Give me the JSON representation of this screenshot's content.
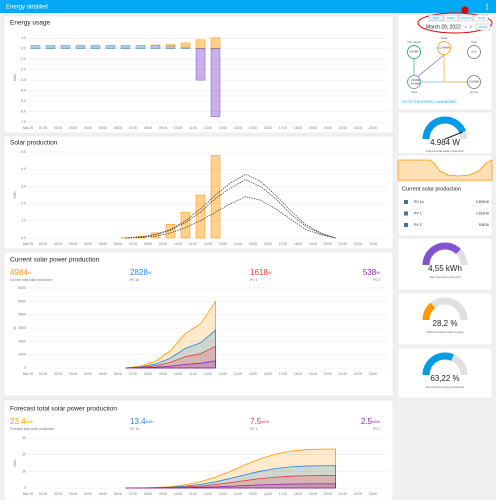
{
  "app_bar": {
    "title": "Energy detailed"
  },
  "energy_usage": {
    "title": "Energy usage",
    "y_label": "kWh",
    "x_labels": [
      "Mar 29",
      "01:00",
      "02:00",
      "03:00",
      "04:00",
      "05:00",
      "06:00",
      "07:00",
      "08:00",
      "09:00",
      "10:00",
      "11:00",
      "12:00",
      "13:00",
      "14:00",
      "15:00",
      "16:00",
      "17:00",
      "18:00",
      "19:00",
      "20:00",
      "21:00",
      "22:00",
      "23:00"
    ],
    "ylim": [
      -7,
      1.5
    ],
    "yticks": [
      {
        "value": 1,
        "label": "1.0"
      },
      {
        "value": 0,
        "label": "0.0"
      },
      {
        "value": -1,
        "label": "-1.0"
      },
      {
        "value": -2,
        "label": "-2.0"
      },
      {
        "value": -3,
        "label": "-3.0"
      },
      {
        "value": -4,
        "label": "-4.0"
      },
      {
        "value": -5,
        "label": "-5.0"
      },
      {
        "value": -6,
        "label": "-6.0"
      },
      {
        "value": -7,
        "label": "-7.0"
      }
    ],
    "series": [
      {
        "kind": "bar",
        "color": "#488fc2",
        "values": [
          0.3,
          0.3,
          0.3,
          0.3,
          0.3,
          0.3,
          0.3,
          0.3,
          0.3,
          0.25,
          0.15,
          0.05,
          0.05,
          null,
          null,
          null,
          null,
          null,
          null,
          null,
          null,
          null,
          null,
          null
        ]
      },
      {
        "kind": "bar",
        "color": "#ff9800",
        "values": [
          null,
          null,
          null,
          null,
          null,
          null,
          null,
          null,
          0.05,
          0.15,
          0.4,
          0.8,
          1.0,
          null,
          null,
          null,
          null,
          null,
          null,
          null,
          null,
          null,
          null,
          null
        ]
      },
      {
        "kind": "bar",
        "color": "#8353d1",
        "values": [
          null,
          null,
          null,
          null,
          null,
          null,
          null,
          null,
          null,
          null,
          null,
          -3.0,
          -6.5,
          null,
          null,
          null,
          null,
          null,
          null,
          null,
          null,
          null,
          null,
          null
        ]
      }
    ]
  },
  "solar_production": {
    "title": "Solar production",
    "y_label": "kWh",
    "x_labels": [
      "Mar 29",
      "01:00",
      "02:00",
      "03:00",
      "04:00",
      "05:00",
      "06:00",
      "07:00",
      "08:00",
      "09:00",
      "10:00",
      "11:00",
      "12:00",
      "13:00",
      "14:00",
      "15:00",
      "16:00",
      "17:00",
      "18:00",
      "19:00",
      "20:00",
      "21:00",
      "22:00",
      "23:00"
    ],
    "ylim": [
      0,
      5
    ],
    "yticks": [
      {
        "value": 0,
        "label": "0.0"
      },
      {
        "value": 1,
        "label": "1.0"
      },
      {
        "value": 2,
        "label": "2.0"
      },
      {
        "value": 3,
        "label": "3.0"
      },
      {
        "value": 4,
        "label": "4.0"
      },
      {
        "value": 5,
        "label": "5.0"
      }
    ],
    "series": [
      {
        "kind": "bar",
        "color": "#ff9800",
        "values": [
          null,
          null,
          null,
          null,
          null,
          null,
          0.02,
          0.1,
          0.3,
          0.8,
          1.5,
          2.5,
          4.8,
          null,
          null,
          null,
          null,
          null,
          null,
          null,
          null,
          null,
          null,
          null
        ]
      },
      {
        "kind": "dashed",
        "color": "#333333",
        "values": [
          null,
          null,
          null,
          null,
          null,
          null,
          0,
          0.05,
          0.2,
          0.5,
          1.0,
          1.7,
          2.5,
          3.2,
          3.7,
          3.3,
          2.5,
          1.6,
          0.8,
          0.3,
          0,
          null,
          null,
          null
        ]
      },
      {
        "kind": "dashed",
        "color": "#333333",
        "values": [
          null,
          null,
          null,
          null,
          null,
          null,
          0,
          0.05,
          0.2,
          0.45,
          0.9,
          1.5,
          2.3,
          2.9,
          3.4,
          3.0,
          2.3,
          1.4,
          0.7,
          0.25,
          0,
          null,
          null,
          null
        ]
      },
      {
        "kind": "dashed",
        "color": "#333333",
        "values": [
          null,
          null,
          null,
          null,
          null,
          null,
          0,
          0.03,
          0.1,
          0.3,
          0.6,
          1.0,
          1.5,
          2.0,
          2.4,
          2.2,
          1.7,
          1.1,
          0.5,
          0.2,
          0,
          null,
          null,
          null
        ]
      }
    ]
  },
  "current_power": {
    "title": "Current solar power production",
    "y_label": "W",
    "stats": [
      {
        "value": 4984,
        "unit": "W",
        "label": "Current total solar production",
        "color": "#ff9800"
      },
      {
        "value": 2828,
        "unit": "W",
        "label": "PV 1a",
        "color": "#1e88e5"
      },
      {
        "value": 1618,
        "unit": "W",
        "label": "PV 1",
        "color": "#e53935"
      },
      {
        "value": 538,
        "unit": "W",
        "label": "PV 2",
        "color": "#8e24aa"
      }
    ],
    "x_labels": [
      "Mar 29",
      "01:00",
      "02:00",
      "03:00",
      "04:00",
      "05:00",
      "06:00",
      "07:00",
      "08:00",
      "09:00",
      "10:00",
      "11:00",
      "12:00",
      "13:00",
      "14:00",
      "15:00",
      "16:00",
      "17:00",
      "18:00",
      "19:00",
      "20:00",
      "21:00",
      "22:00",
      "23:00"
    ],
    "ylim": [
      0,
      6000
    ],
    "yticks": [
      0,
      1000,
      2000,
      3000,
      4000,
      5000,
      6000
    ],
    "series": [
      {
        "kind": "area",
        "color": "#ff9800",
        "values": [
          null,
          null,
          null,
          null,
          null,
          null,
          0,
          150,
          500,
          1300,
          2600,
          3300,
          4984,
          null,
          null,
          null,
          null,
          null,
          null,
          null,
          null,
          null,
          null,
          null
        ]
      },
      {
        "kind": "area",
        "color": "#1e88e5",
        "values": [
          null,
          null,
          null,
          null,
          null,
          null,
          0,
          85,
          285,
          740,
          1480,
          1880,
          2828,
          null,
          null,
          null,
          null,
          null,
          null,
          null,
          null,
          null,
          null,
          null
        ]
      },
      {
        "kind": "area",
        "color": "#e53935",
        "values": [
          null,
          null,
          null,
          null,
          null,
          null,
          0,
          50,
          160,
          420,
          850,
          1070,
          1618,
          null,
          null,
          null,
          null,
          null,
          null,
          null,
          null,
          null,
          null,
          null
        ]
      },
      {
        "kind": "area",
        "color": "#8e24aa",
        "values": [
          null,
          null,
          null,
          null,
          null,
          null,
          0,
          15,
          55,
          140,
          270,
          350,
          538,
          null,
          null,
          null,
          null,
          null,
          null,
          null,
          null,
          null,
          null,
          null
        ]
      }
    ]
  },
  "forecast": {
    "title": "Forecast total solar power production",
    "y_label": "kWh",
    "stats": [
      {
        "value": 23.4,
        "unit": "kWh",
        "label": "Forecast total solar production",
        "color": "#ff9800"
      },
      {
        "value": 13.4,
        "unit": "kWh",
        "label": "PV 1a",
        "color": "#1e88e5"
      },
      {
        "value": 7.5,
        "unit": "kWh",
        "label": "PV 1",
        "color": "#e53935"
      },
      {
        "value": 2.5,
        "unit": "kWh",
        "label": "PV 2",
        "color": "#8e24aa"
      }
    ],
    "x_labels": [
      "Mar 29",
      "01:00",
      "02:00",
      "03:00",
      "04:00",
      "05:00",
      "06:00",
      "07:00",
      "08:00",
      "09:00",
      "10:00",
      "11:00",
      "12:00",
      "13:00",
      "14:00",
      "15:00",
      "16:00",
      "17:00",
      "18:00",
      "19:00",
      "20:00",
      "21:00",
      "22:00",
      "23:00"
    ],
    "ylim": [
      0,
      30
    ],
    "yticks": [
      0,
      10,
      20,
      30
    ],
    "series": [
      {
        "kind": "area",
        "color": "#ff9800",
        "values": [
          null,
          null,
          null,
          null,
          null,
          null,
          0,
          0.05,
          0.3,
          0.8,
          1.9,
          3.8,
          6.5,
          10,
          14,
          17.6,
          20.3,
          22.1,
          23,
          23.3,
          23.4,
          null,
          null,
          null
        ]
      },
      {
        "kind": "area",
        "color": "#1e88e5",
        "values": [
          null,
          null,
          null,
          null,
          null,
          null,
          0,
          0.03,
          0.17,
          0.46,
          1.09,
          2.18,
          3.72,
          5.73,
          8.02,
          10.08,
          11.63,
          12.66,
          13.17,
          13.34,
          13.4,
          null,
          null,
          null
        ]
      },
      {
        "kind": "area",
        "color": "#e53935",
        "values": [
          null,
          null,
          null,
          null,
          null,
          null,
          0,
          0.02,
          0.1,
          0.26,
          0.61,
          1.22,
          2.08,
          3.21,
          4.49,
          5.64,
          6.51,
          7.08,
          7.37,
          7.47,
          7.5,
          null,
          null,
          null
        ]
      },
      {
        "kind": "area",
        "color": "#8e24aa",
        "values": [
          null,
          null,
          null,
          null,
          null,
          null,
          0,
          0.01,
          0.03,
          0.09,
          0.2,
          0.41,
          0.69,
          1.07,
          1.5,
          1.88,
          2.17,
          2.36,
          2.46,
          2.49,
          2.5,
          null,
          null,
          null
        ]
      }
    ]
  },
  "date_picker": {
    "periods": [
      "DAY",
      "WEEK",
      "MONTH",
      "YEAR"
    ],
    "date": "March 29, 2022",
    "today": "TODAY"
  },
  "distribution": {
    "nodes": [
      {
        "label": "Non-fossil",
        "values": [
          "0.9 kWh"
        ]
      },
      {
        "label": "Solar",
        "values": [
          "12.6 kWh"
        ]
      },
      {
        "label": "Gas",
        "values": [
          "0 m³"
        ]
      },
      {
        "label": "Grid",
        "values": [
          "← 2.8 kWh",
          "→ 4.6 kWh"
        ]
      },
      {
        "label": "Home",
        "values": [
          "10.8 kWh"
        ]
      }
    ],
    "link": "GO TO THE ENERGY DASHBOARD"
  },
  "gauges": [
    {
      "value_label": "4.984 W",
      "label": "Current total solar production"
    },
    {
      "value_label": "4,55 kWh",
      "label": "Net returned to the grid"
    },
    {
      "value_label": "28,2 %",
      "label": "Self-consumed solar energy"
    },
    {
      "value_label": "63,22 %",
      "label": "Non-fossil energy consumed"
    }
  ],
  "solar_list": {
    "title": "Current solar production",
    "rows": [
      {
        "name": "PV 1a",
        "value": "2.828 W"
      },
      {
        "name": "PV 1",
        "value": "1.618 W"
      },
      {
        "name": "PV 2",
        "value": "538 W"
      }
    ]
  }
}
